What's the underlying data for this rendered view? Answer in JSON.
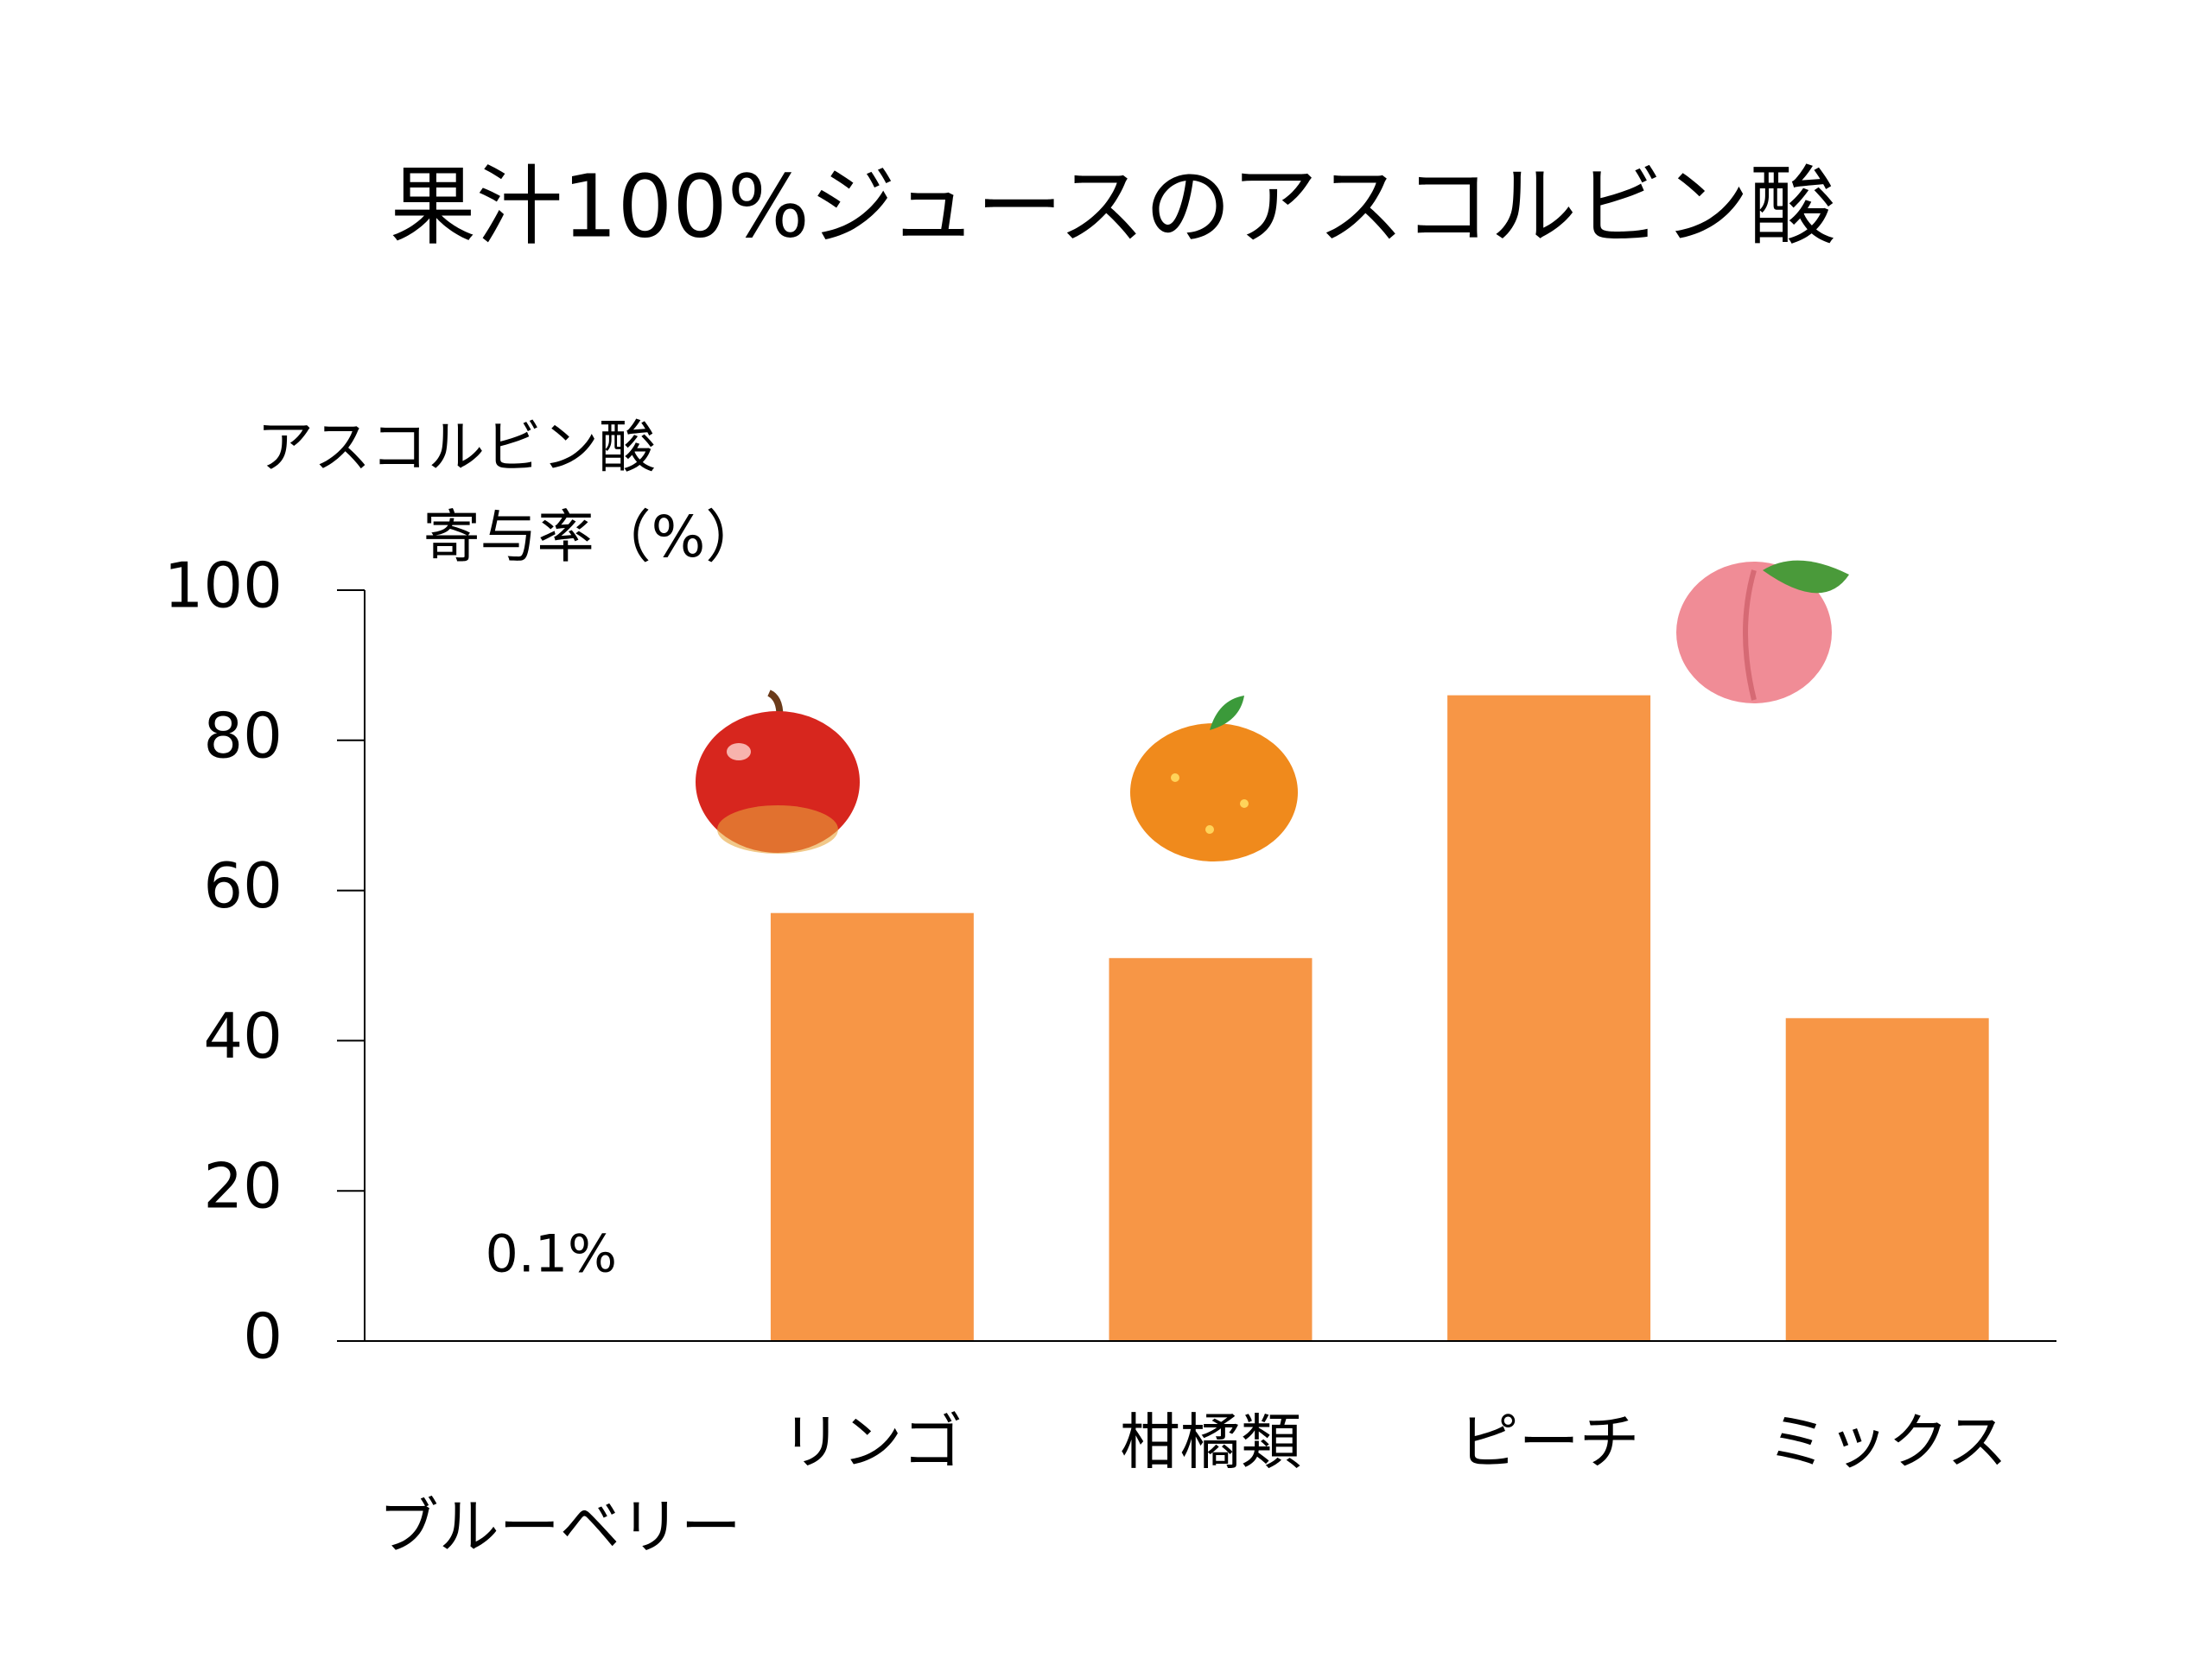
{
  "chart_data": {
    "type": "bar",
    "title": "果汁100%ジュースのアスコルビン酸",
    "y_label": [
      "アスコルビン酸",
      "寄与率（%）"
    ],
    "categories": [
      "ブルーベリー",
      "リンゴ",
      "柑橘類",
      "ピーチ",
      "ミックス"
    ],
    "values": [
      0.1,
      57,
      51,
      86,
      43
    ],
    "value_labels": [
      "0.1%",
      null,
      null,
      null,
      null
    ],
    "color": "#f79646",
    "ylim": [
      0,
      100
    ],
    "yticks": [
      0,
      20,
      40,
      60,
      80,
      100
    ],
    "grid": false
  }
}
